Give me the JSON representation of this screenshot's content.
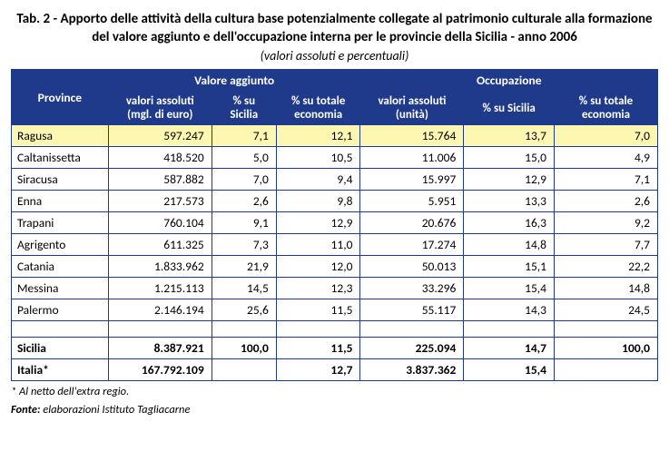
{
  "title": "Tab. 2 - Apporto delle attività della cultura base potenzialmente collegate al patrimonio culturale alla formazione del valore aggiunto e dell'occupazione interna per le provincie della Sicilia - anno 2006",
  "subtitle": "(valori assoluti e percentuali)",
  "headers": {
    "province": "Province",
    "group1": "Valore aggiunto",
    "group2": "Occupazione",
    "va_abs": "valori assoluti (mgl. di euro)",
    "va_sic": "% su Sicilia",
    "va_tot": "% su totale economia",
    "oc_abs": "valori assoluti (unità)",
    "oc_sic": "% su Sicilia",
    "oc_tot": "% su totale economia"
  },
  "rows": [
    {
      "name": "Ragusa",
      "va_abs": "597.247",
      "va_sic": "7,1",
      "va_tot": "12,1",
      "oc_abs": "15.764",
      "oc_sic": "13,7",
      "oc_tot": "7,0",
      "hl": true
    },
    {
      "name": "Caltanissetta",
      "va_abs": "418.520",
      "va_sic": "5,0",
      "va_tot": "10,5",
      "oc_abs": "11.006",
      "oc_sic": "15,0",
      "oc_tot": "4,9"
    },
    {
      "name": "Siracusa",
      "va_abs": "587.882",
      "va_sic": "7,0",
      "va_tot": "9,4",
      "oc_abs": "15.997",
      "oc_sic": "12,9",
      "oc_tot": "7,1"
    },
    {
      "name": "Enna",
      "va_abs": "217.573",
      "va_sic": "2,6",
      "va_tot": "9,8",
      "oc_abs": "5.951",
      "oc_sic": "13,3",
      "oc_tot": "2,6"
    },
    {
      "name": "Trapani",
      "va_abs": "760.104",
      "va_sic": "9,1",
      "va_tot": "12,9",
      "oc_abs": "20.676",
      "oc_sic": "16,3",
      "oc_tot": "9,2"
    },
    {
      "name": "Agrigento",
      "va_abs": "611.325",
      "va_sic": "7,3",
      "va_tot": "11,0",
      "oc_abs": "17.274",
      "oc_sic": "14,8",
      "oc_tot": "7,7"
    },
    {
      "name": "Catania",
      "va_abs": "1.833.962",
      "va_sic": "21,9",
      "va_tot": "12,0",
      "oc_abs": "50.013",
      "oc_sic": "15,1",
      "oc_tot": "22,2"
    },
    {
      "name": "Messina",
      "va_abs": "1.215.113",
      "va_sic": "14,5",
      "va_tot": "12,3",
      "oc_abs": "33.296",
      "oc_sic": "15,4",
      "oc_tot": "14,8"
    },
    {
      "name": "Palermo",
      "va_abs": "2.146.194",
      "va_sic": "25,6",
      "va_tot": "11,5",
      "oc_abs": "55.117",
      "oc_sic": "14,3",
      "oc_tot": "24,5"
    }
  ],
  "totals": [
    {
      "name": "Sicilia",
      "va_abs": "8.387.921",
      "va_sic": "100,0",
      "va_tot": "11,5",
      "oc_abs": "225.094",
      "oc_sic": "14,7",
      "oc_tot": "100,0"
    },
    {
      "name": "Italia*",
      "va_abs": "167.792.109",
      "va_sic": "",
      "va_tot": "12,7",
      "oc_abs": "3.837.362",
      "oc_sic": "15,4",
      "oc_tot": ""
    }
  ],
  "footnote1": "* Al netto dell'extra regio.",
  "footnote2_label": "Fonte:",
  "footnote2_text": " elaborazioni Istituto Tagliacarne",
  "colors": {
    "header_bg": "#1f3a8a",
    "header_fg": "#ffffff",
    "highlight_bg": "#fdf7b2",
    "border": "#1f3a8a"
  }
}
